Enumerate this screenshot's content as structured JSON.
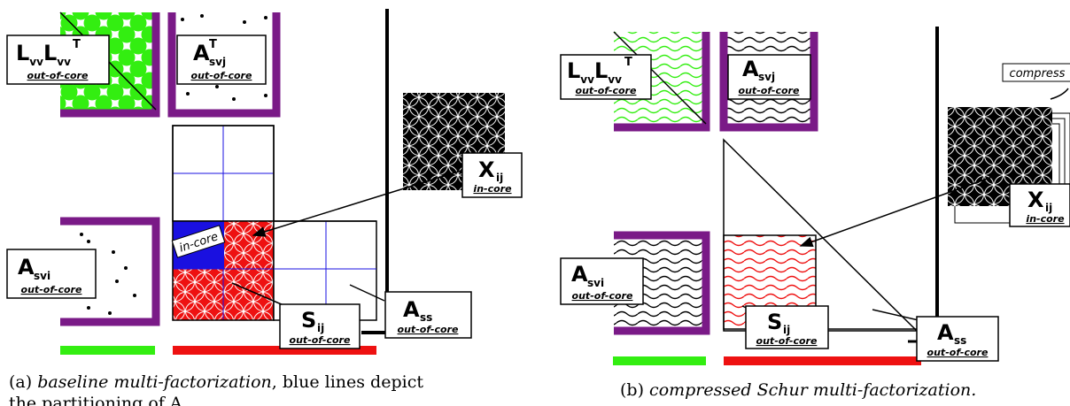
{
  "colors": {
    "purple": "#7a1a87",
    "green": "#33ee11",
    "red": "#ee1111",
    "blue": "#1a10e0",
    "black": "#000000"
  },
  "panel_a": {
    "llt": {
      "main": "LvvLvv",
      "sub": "vv",
      "sup": "T",
      "note": "out-of-core"
    },
    "asvj": {
      "main": "A",
      "sub": "svj",
      "sup": "T",
      "note": "out-of-core"
    },
    "xij": {
      "main": "X",
      "sub": "ij",
      "note": "in-core"
    },
    "asvi": {
      "main": "A",
      "sub": "svi",
      "note": "out-of-core"
    },
    "sij": {
      "main": "S",
      "sub": "ij",
      "note": "out-of-core"
    },
    "ass": {
      "main": "A",
      "sub": "ss",
      "note": "out-of-core"
    },
    "incore_tag": "in-core",
    "caption_prefix": "(a)",
    "caption_italic": "baseline multi-factorization",
    "caption_rest": ", blue lines depict",
    "caption_line2": "the partitioning of A"
  },
  "panel_b": {
    "llt": {
      "main": "LvvLvv",
      "note": "out-of-core"
    },
    "asvj": {
      "main": "A",
      "sub": "svj",
      "note": "out-of-core"
    },
    "xij": {
      "main": "X",
      "sub": "ij",
      "note": "in-core"
    },
    "asvi": {
      "main": "A",
      "sub": "svi",
      "note": "out-of-core"
    },
    "sij": {
      "main": "S",
      "sub": "ij",
      "note": "out-of-core"
    },
    "ass": {
      "main": "A",
      "sub": "ss",
      "note": "out-of-core"
    },
    "compress_tag": "compress",
    "caption_prefix": "(b)",
    "caption_italic": "compressed Schur multi-factorization."
  }
}
